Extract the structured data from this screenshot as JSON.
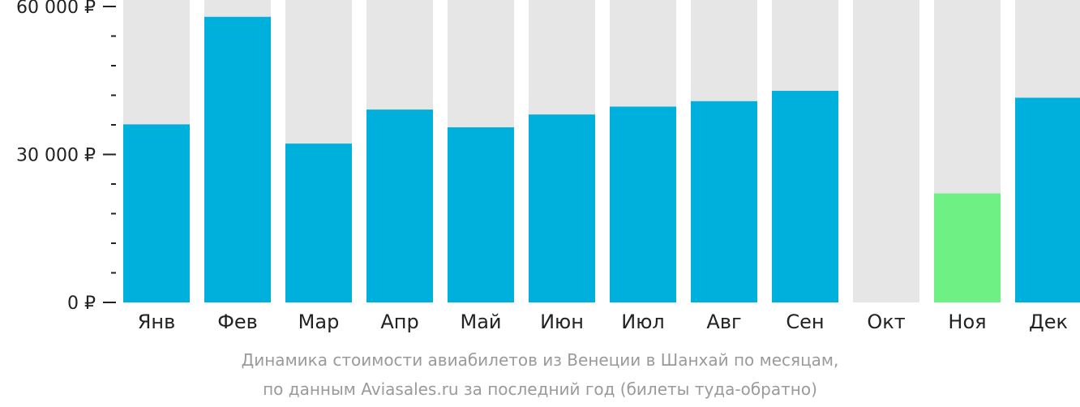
{
  "chart_data": {
    "type": "bar",
    "categories": [
      "Янв",
      "Фев",
      "Мар",
      "Апр",
      "Май",
      "Июн",
      "Июл",
      "Авг",
      "Сен",
      "Окт",
      "Ноя",
      "Дек"
    ],
    "values": [
      36100,
      57900,
      32200,
      39100,
      35500,
      38100,
      39700,
      40800,
      42900,
      null,
      22100,
      41500
    ],
    "ylim": [
      0,
      60000
    ],
    "yticks": [
      {
        "value": 0,
        "label": "0 ₽"
      },
      {
        "value": 30000,
        "label": "30 000 ₽"
      },
      {
        "value": 60000,
        "label": "60 000 ₽"
      }
    ],
    "minor_tick_step": 6000,
    "highlight_category": "Ноя",
    "colors": {
      "bar": "#00b0dc",
      "highlight": "#6ef084",
      "background_bar": "#e6e6e6",
      "axis": "#222222"
    }
  },
  "caption": {
    "line1": "Динамика стоимости авиабилетов из Венеции в Шанхай по месяцам,",
    "line2": "по данным Aviasales.ru за последний год (билеты туда-обратно)"
  }
}
